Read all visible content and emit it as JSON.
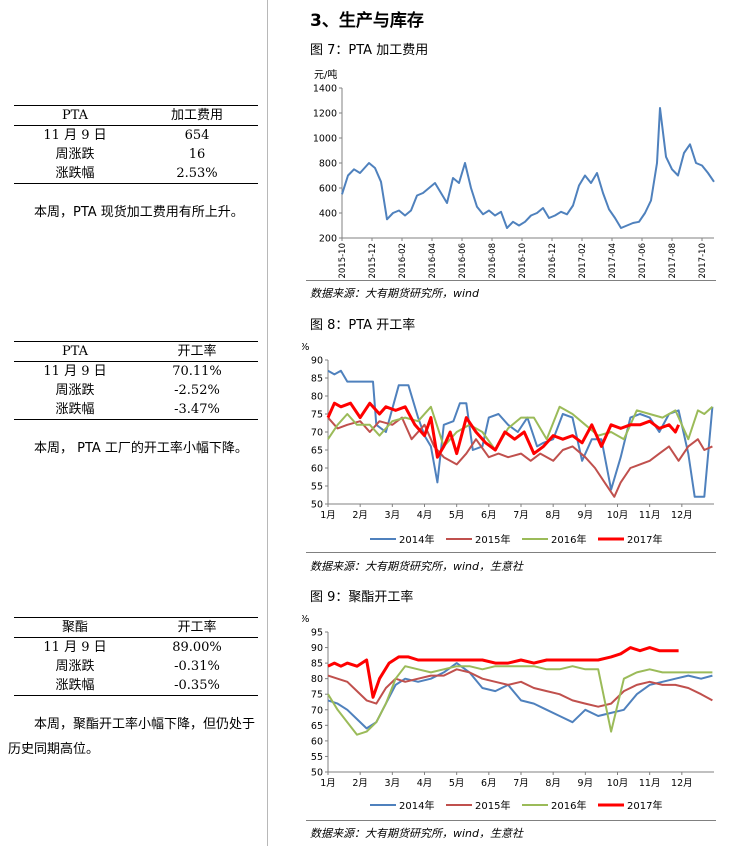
{
  "left": {
    "tables": [
      {
        "header": [
          "PTA",
          "加工费用"
        ],
        "rows": [
          [
            "11 月 9 日",
            "654"
          ],
          [
            "周涨跌",
            "16"
          ],
          [
            "涨跌幅",
            "2.53%"
          ]
        ],
        "note": "本周，PTA 现货加工费用有所上升。"
      },
      {
        "header": [
          "PTA",
          "开工率"
        ],
        "rows": [
          [
            "11 月 9 日",
            "70.11%"
          ],
          [
            "周涨跌",
            "-2.52%"
          ],
          [
            "涨跌幅",
            "-3.47%"
          ]
        ],
        "note": "本周， PTA 工厂的开工率小幅下降。"
      },
      {
        "header": [
          "聚酯",
          "开工率"
        ],
        "rows": [
          [
            "11 月 9 日",
            "89.00%"
          ],
          [
            "周涨跌",
            "-0.31%"
          ],
          [
            "涨跌幅",
            "-0.35%"
          ]
        ],
        "note": "本周，聚酯开工率小幅下降，但仍处于历史同期高位。"
      }
    ]
  },
  "section_title": "3、生产与库存",
  "figures": [
    {
      "title": "图 7：PTA 加工费用",
      "source": "数据来源：大有期货研究所，wind"
    },
    {
      "title": "图 8：PTA 开工率",
      "source": "数据来源：大有期货研究所，wind，生意社"
    },
    {
      "title": "图 9：聚酯开工率",
      "source": "数据来源：大有期货研究所，wind，生意社"
    }
  ],
  "chart_data": [
    {
      "type": "line",
      "ylabel": "元/吨",
      "ylim": [
        200,
        1400
      ],
      "yticks": [
        200,
        400,
        600,
        800,
        1000,
        1200,
        1400
      ],
      "xticks": [
        "2015-10",
        "2015-12",
        "2016-02",
        "2016-04",
        "2016-06",
        "2016-08",
        "2016-10",
        "2016-12",
        "2017-02",
        "2017-04",
        "2017-06",
        "2017-08",
        "2017-10"
      ],
      "series": [
        {
          "color": "#4f81bd",
          "x": [
            0,
            0.2,
            0.4,
            0.6,
            0.9,
            1.1,
            1.3,
            1.5,
            1.7,
            1.9,
            2.1,
            2.3,
            2.5,
            2.7,
            2.9,
            3.1,
            3.3,
            3.5,
            3.7,
            3.9,
            4.1,
            4.3,
            4.5,
            4.7,
            4.9,
            5.1,
            5.3,
            5.5,
            5.7,
            5.9,
            6.1,
            6.3,
            6.5,
            6.7,
            6.9,
            7.1,
            7.3,
            7.5,
            7.7,
            7.9,
            8.1,
            8.3,
            8.5,
            8.7,
            8.9,
            9.1,
            9.3,
            9.5,
            9.7,
            9.9,
            10.1,
            10.3,
            10.5,
            10.6,
            10.8,
            11.0,
            11.2,
            11.4,
            11.6,
            11.8,
            12.0,
            12.2,
            12.4
          ],
          "y": [
            550,
            700,
            750,
            720,
            800,
            760,
            650,
            350,
            400,
            420,
            380,
            420,
            540,
            560,
            600,
            640,
            560,
            480,
            680,
            640,
            800,
            600,
            450,
            390,
            420,
            380,
            410,
            280,
            330,
            300,
            330,
            380,
            400,
            440,
            360,
            380,
            410,
            390,
            460,
            620,
            700,
            640,
            720,
            560,
            430,
            360,
            280,
            300,
            320,
            330,
            400,
            500,
            800,
            1240,
            850,
            750,
            700,
            880,
            950,
            800,
            780,
            720,
            650
          ]
        }
      ]
    },
    {
      "type": "line",
      "ylabel": "%",
      "ylim": [
        50,
        90
      ],
      "yticks": [
        50,
        55,
        60,
        65,
        70,
        75,
        80,
        85,
        90
      ],
      "xticks": [
        "1月",
        "2月",
        "3月",
        "4月",
        "5月",
        "6月",
        "7月",
        "8月",
        "9月",
        "10月",
        "11月",
        "12月"
      ],
      "series": [
        {
          "name": "2014年",
          "color": "#4f81bd",
          "x": [
            0,
            0.2,
            0.4,
            0.6,
            1.0,
            1.4,
            1.5,
            1.8,
            2.2,
            2.5,
            2.8,
            3.0,
            3.2,
            3.4,
            3.6,
            3.9,
            4.1,
            4.3,
            4.5,
            4.8,
            5.0,
            5.3,
            5.6,
            5.9,
            6.2,
            6.5,
            6.7,
            7.0,
            7.3,
            7.6,
            7.9,
            8.2,
            8.5,
            8.8,
            9.1,
            9.4,
            9.7,
            10.0,
            10.3,
            10.6,
            10.9,
            11.2,
            11.4,
            11.7,
            11.95
          ],
          "y": [
            87,
            86,
            87,
            84,
            84,
            84,
            72,
            70,
            83,
            83,
            74,
            69,
            66,
            56,
            72,
            73,
            78,
            78,
            65,
            66,
            74,
            75,
            72,
            70,
            74,
            66,
            67,
            68,
            75,
            74,
            62,
            68,
            68,
            54,
            63,
            74,
            75,
            74,
            70,
            75,
            76,
            64,
            52,
            52,
            77
          ]
        },
        {
          "name": "2015年",
          "color": "#c0504d",
          "x": [
            0,
            0.3,
            0.6,
            1.0,
            1.3,
            1.6,
            2.0,
            2.3,
            2.6,
            3.0,
            3.3,
            3.6,
            4.0,
            4.3,
            4.6,
            5.0,
            5.3,
            5.6,
            6.0,
            6.3,
            6.6,
            7.0,
            7.3,
            7.6,
            8.0,
            8.3,
            8.6,
            8.9,
            9.1,
            9.4,
            9.7,
            10.0,
            10.3,
            10.6,
            10.9,
            11.2,
            11.5,
            11.7,
            11.95
          ],
          "y": [
            74,
            71,
            72,
            73,
            70,
            73,
            72,
            74,
            68,
            72,
            66,
            63,
            61,
            64,
            68,
            63,
            64,
            63,
            64,
            62,
            64,
            62,
            65,
            66,
            63,
            60,
            56,
            52,
            56,
            60,
            61,
            62,
            64,
            66,
            62,
            66,
            68,
            65,
            66
          ]
        },
        {
          "name": "2016年",
          "color": "#9bbb59",
          "x": [
            0,
            0.3,
            0.6,
            0.9,
            1.3,
            1.6,
            2.0,
            2.4,
            2.8,
            3.2,
            3.6,
            4.0,
            4.4,
            4.8,
            5.2,
            5.6,
            6.0,
            6.4,
            6.8,
            7.2,
            7.6,
            8.0,
            8.4,
            8.8,
            9.2,
            9.6,
            10.0,
            10.4,
            10.8,
            11.2,
            11.5,
            11.7,
            11.95
          ],
          "y": [
            68,
            72,
            75,
            72,
            72,
            69,
            73,
            74,
            73,
            77,
            66,
            70,
            72,
            70,
            65,
            71,
            74,
            74,
            68,
            77,
            75,
            72,
            69,
            70,
            68,
            76,
            75,
            74,
            76,
            68,
            76,
            75,
            77
          ]
        },
        {
          "name": "2017年",
          "color": "#ff0000",
          "x": [
            0,
            0.2,
            0.4,
            0.7,
            1.0,
            1.3,
            1.6,
            1.8,
            2.1,
            2.4,
            2.7,
            3.0,
            3.2,
            3.4,
            3.6,
            3.8,
            4.0,
            4.3,
            4.6,
            4.9,
            5.2,
            5.5,
            5.8,
            6.1,
            6.4,
            6.7,
            7.0,
            7.3,
            7.6,
            7.9,
            8.2,
            8.5,
            8.8,
            9.1,
            9.4,
            9.7,
            10.0,
            10.3,
            10.6,
            10.8,
            10.9
          ],
          "y": [
            74,
            78,
            77,
            78,
            74,
            78,
            75,
            77,
            76,
            77,
            72,
            69,
            74,
            63,
            66,
            70,
            64,
            74,
            70,
            67,
            65,
            70,
            68,
            70,
            64,
            66,
            69,
            68,
            69,
            67,
            72,
            66,
            72,
            71,
            72,
            72,
            73,
            71,
            72,
            70,
            72
          ]
        }
      ]
    },
    {
      "type": "line",
      "ylabel": "%",
      "ylim": [
        50,
        95
      ],
      "yticks": [
        50,
        55,
        60,
        65,
        70,
        75,
        80,
        85,
        90,
        95
      ],
      "xticks": [
        "1月",
        "2月",
        "3月",
        "4月",
        "5月",
        "6月",
        "7月",
        "8月",
        "9月",
        "10月",
        "11月",
        "12月"
      ],
      "series": [
        {
          "name": "2014年",
          "color": "#4f81bd",
          "x": [
            0,
            0.3,
            0.6,
            0.9,
            1.2,
            1.5,
            1.8,
            2.1,
            2.4,
            2.8,
            3.2,
            3.6,
            4.0,
            4.4,
            4.8,
            5.2,
            5.6,
            6.0,
            6.4,
            6.8,
            7.2,
            7.6,
            8.0,
            8.4,
            8.8,
            9.2,
            9.6,
            10.0,
            10.4,
            10.8,
            11.2,
            11.6,
            11.95
          ],
          "y": [
            73,
            72,
            70,
            67,
            64,
            66,
            72,
            78,
            80,
            79,
            80,
            82,
            85,
            82,
            77,
            76,
            78,
            73,
            72,
            70,
            68,
            66,
            70,
            68,
            69,
            70,
            75,
            78,
            79,
            80,
            81,
            80,
            81
          ]
        },
        {
          "name": "2015年",
          "color": "#c0504d",
          "x": [
            0,
            0.3,
            0.6,
            0.9,
            1.2,
            1.5,
            1.8,
            2.1,
            2.4,
            2.8,
            3.2,
            3.6,
            4.0,
            4.4,
            4.8,
            5.2,
            5.6,
            6.0,
            6.4,
            6.8,
            7.2,
            7.6,
            8.0,
            8.4,
            8.8,
            9.2,
            9.6,
            10.0,
            10.4,
            10.8,
            11.2,
            11.6,
            11.95
          ],
          "y": [
            81,
            80,
            79,
            76,
            73,
            72,
            77,
            80,
            79,
            80,
            81,
            81,
            83,
            82,
            80,
            79,
            78,
            79,
            77,
            76,
            75,
            73,
            72,
            71,
            72,
            76,
            78,
            79,
            78,
            78,
            77,
            75,
            73
          ]
        },
        {
          "name": "2016年",
          "color": "#9bbb59",
          "x": [
            0,
            0.3,
            0.6,
            0.9,
            1.2,
            1.5,
            1.8,
            2.1,
            2.4,
            2.8,
            3.2,
            3.6,
            4.0,
            4.4,
            4.8,
            5.2,
            5.6,
            6.0,
            6.4,
            6.8,
            7.2,
            7.6,
            8.0,
            8.4,
            8.8,
            9.2,
            9.6,
            10.0,
            10.4,
            10.8,
            11.2,
            11.6,
            11.95
          ],
          "y": [
            75,
            70,
            66,
            62,
            63,
            66,
            72,
            80,
            84,
            83,
            82,
            83,
            84,
            84,
            83,
            84,
            84,
            84,
            84,
            83,
            83,
            84,
            83,
            83,
            63,
            80,
            82,
            83,
            82,
            82,
            82,
            82,
            82
          ]
        },
        {
          "name": "2017年",
          "color": "#ff0000",
          "x": [
            0,
            0.2,
            0.4,
            0.6,
            0.9,
            1.2,
            1.4,
            1.6,
            1.9,
            2.2,
            2.5,
            2.8,
            3.2,
            3.6,
            4.0,
            4.4,
            4.8,
            5.2,
            5.6,
            6.0,
            6.4,
            6.8,
            7.2,
            7.6,
            8.0,
            8.4,
            8.8,
            9.1,
            9.4,
            9.7,
            10.0,
            10.3,
            10.6,
            10.8,
            10.9
          ],
          "y": [
            84,
            85,
            84,
            85,
            84,
            86,
            74,
            80,
            85,
            87,
            87,
            86,
            86,
            86,
            86,
            86,
            86,
            85,
            85,
            86,
            85,
            86,
            86,
            86,
            86,
            86,
            87,
            88,
            90,
            89,
            90,
            89,
            89,
            89,
            89
          ]
        }
      ]
    }
  ]
}
